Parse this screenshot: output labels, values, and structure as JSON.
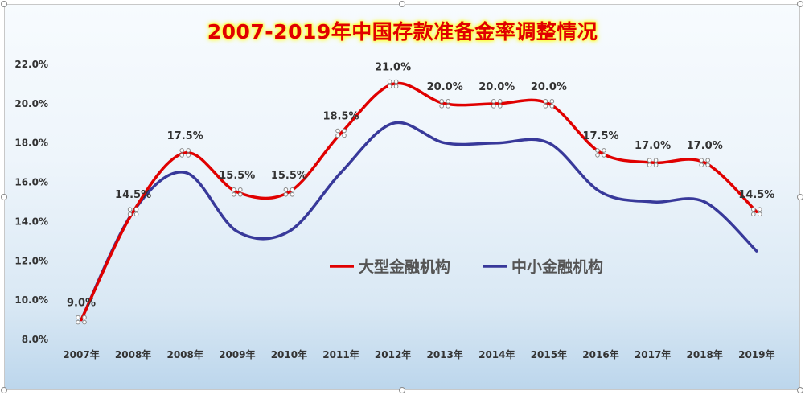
{
  "chart_data": {
    "type": "line",
    "title": "2007-2019年中国存款准备金率调整情况",
    "categories": [
      "2007年",
      "2008年",
      "2008年",
      "2009年",
      "2010年",
      "2011年",
      "2012年",
      "2013年",
      "2014年",
      "2015年",
      "2016年",
      "2017年",
      "2018年",
      "2019年"
    ],
    "series": [
      {
        "name": "大型金融机构",
        "color": "#e00000",
        "values": [
          9.0,
          14.5,
          17.5,
          15.5,
          15.5,
          18.5,
          21.0,
          20.0,
          20.0,
          20.0,
          17.5,
          17.0,
          17.0,
          14.5
        ]
      },
      {
        "name": "中小金融机构",
        "color": "#38399a",
        "values": [
          9.0,
          14.5,
          16.5,
          13.5,
          13.5,
          16.5,
          19.0,
          18.0,
          18.0,
          18.0,
          15.5,
          15.0,
          15.0,
          12.5
        ]
      }
    ],
    "data_labels": [
      "9.0%",
      "14.5%",
      "17.5%",
      "15.5%",
      "15.5%",
      "18.5%",
      "21.0%",
      "20.0%",
      "20.0%",
      "20.0%",
      "17.5%",
      "17.0%",
      "17.0%",
      "14.5%"
    ],
    "yticks": [
      "8.0%",
      "10.0%",
      "12.0%",
      "14.0%",
      "16.0%",
      "18.0%",
      "20.0%",
      "22.0%"
    ],
    "ylim": [
      8,
      22
    ],
    "xlabel": "",
    "ylabel": "",
    "legend_position": "center-right"
  }
}
